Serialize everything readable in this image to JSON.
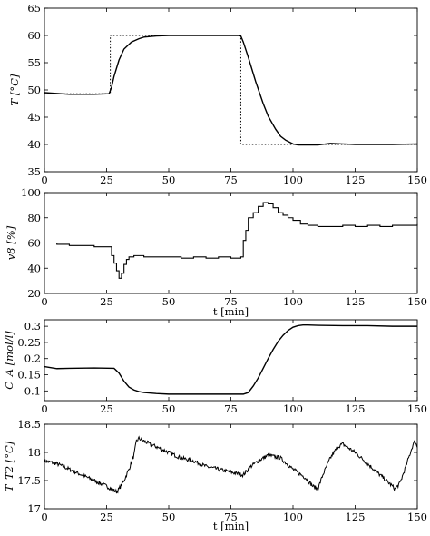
{
  "chart_data": [
    {
      "type": "line",
      "ylabel": "T [°C]",
      "xlabel": "",
      "xlim": [
        0,
        150
      ],
      "ylim": [
        35,
        65
      ],
      "xticks": [
        0,
        25,
        50,
        75,
        100,
        125,
        150
      ],
      "yticks": [
        35,
        40,
        45,
        50,
        55,
        60,
        65
      ],
      "series": [
        {
          "style": "solid",
          "x": [
            0,
            10,
            20,
            26,
            27,
            28,
            30,
            32,
            35,
            38,
            40,
            45,
            50,
            60,
            70,
            75,
            78,
            79,
            80,
            82,
            85,
            88,
            90,
            93,
            95,
            97,
            100,
            102,
            105,
            110,
            115,
            120,
            125,
            130,
            140,
            150
          ],
          "y": [
            49.5,
            49.2,
            49.2,
            49.3,
            50.5,
            52.5,
            55.5,
            57.5,
            58.8,
            59.4,
            59.7,
            59.9,
            60.0,
            60.0,
            60.0,
            60.0,
            60.0,
            59.9,
            58.8,
            56.0,
            51.5,
            47.5,
            45.2,
            42.8,
            41.5,
            40.8,
            40.1,
            39.9,
            39.9,
            39.9,
            40.2,
            40.1,
            40.0,
            40.0,
            40.0,
            40.1
          ]
        },
        {
          "style": "dotted",
          "x": [
            0,
            26.5,
            26.5,
            79,
            79,
            150
          ],
          "y": [
            49.3,
            49.3,
            60,
            60,
            40,
            40
          ]
        }
      ]
    },
    {
      "type": "line",
      "ylabel": "v8 [%]",
      "xlabel": "t [min]",
      "xlim": [
        0,
        150
      ],
      "ylim": [
        20,
        100
      ],
      "xticks": [
        0,
        25,
        50,
        75,
        100,
        125,
        150
      ],
      "yticks": [
        20,
        40,
        60,
        80,
        100
      ],
      "series": [
        {
          "style": "step",
          "x": [
            0,
            5,
            10,
            15,
            20,
            25,
            27,
            28,
            29,
            30,
            31,
            32,
            33,
            34,
            36,
            38,
            40,
            45,
            50,
            55,
            60,
            65,
            70,
            75,
            79,
            80,
            81,
            82,
            84,
            86,
            88,
            90,
            92,
            94,
            96,
            98,
            100,
            103,
            106,
            110,
            115,
            120,
            125,
            130,
            135,
            140,
            145,
            150
          ],
          "y": [
            60,
            59,
            58,
            58,
            57,
            57,
            50,
            44,
            38,
            32,
            36,
            43,
            47,
            49,
            50,
            50,
            49,
            49,
            49,
            48,
            49,
            48,
            49,
            48,
            49,
            62,
            70,
            80,
            84,
            89,
            92,
            91,
            88,
            84,
            82,
            80,
            78,
            75,
            74,
            73,
            73,
            74,
            73,
            74,
            73,
            74,
            74,
            75
          ]
        }
      ]
    },
    {
      "type": "line",
      "ylabel": "C_A [mol/l]",
      "xlabel": "",
      "xlim": [
        0,
        150
      ],
      "ylim": [
        0.07,
        0.32
      ],
      "xticks": [
        0,
        25,
        50,
        75,
        100,
        125,
        150
      ],
      "yticks": [
        0.1,
        0.15,
        0.2,
        0.25,
        0.3
      ],
      "series": [
        {
          "style": "solid",
          "x": [
            0,
            5,
            10,
            20,
            28,
            30,
            32,
            34,
            36,
            38,
            40,
            45,
            50,
            60,
            70,
            80,
            82,
            84,
            86,
            88,
            90,
            92,
            94,
            96,
            98,
            100,
            102,
            104,
            106,
            110,
            120,
            130,
            140,
            150
          ],
          "y": [
            0.175,
            0.169,
            0.17,
            0.171,
            0.17,
            0.155,
            0.13,
            0.112,
            0.103,
            0.098,
            0.095,
            0.092,
            0.09,
            0.09,
            0.09,
            0.09,
            0.095,
            0.115,
            0.14,
            0.17,
            0.2,
            0.228,
            0.253,
            0.272,
            0.287,
            0.297,
            0.302,
            0.304,
            0.304,
            0.303,
            0.302,
            0.302,
            0.3,
            0.3
          ]
        }
      ]
    },
    {
      "type": "line",
      "ylabel": "T_T2 [°C]",
      "xlabel": "t [min]",
      "xlim": [
        0,
        150
      ],
      "ylim": [
        17,
        18.5
      ],
      "xticks": [
        0,
        25,
        50,
        75,
        100,
        125,
        150
      ],
      "yticks": [
        17,
        17.5,
        18,
        18.5
      ],
      "series": [
        {
          "style": "noisy",
          "x": [
            0,
            5,
            10,
            15,
            20,
            25,
            29,
            30,
            32,
            34,
            36,
            37,
            38,
            40,
            45,
            50,
            55,
            60,
            65,
            70,
            75,
            80,
            83,
            86,
            90,
            95,
            100,
            105,
            108,
            110,
            112,
            115,
            118,
            120,
            125,
            130,
            135,
            140,
            141,
            143,
            145,
            148,
            149,
            150
          ],
          "y": [
            17.85,
            17.8,
            17.7,
            17.6,
            17.5,
            17.4,
            17.3,
            17.35,
            17.5,
            17.7,
            17.95,
            18.2,
            18.25,
            18.2,
            18.1,
            18.0,
            17.9,
            17.85,
            17.75,
            17.7,
            17.65,
            17.6,
            17.75,
            17.85,
            17.95,
            17.9,
            17.7,
            17.55,
            17.4,
            17.35,
            17.6,
            17.9,
            18.1,
            18.15,
            18.0,
            17.8,
            17.6,
            17.4,
            17.35,
            17.45,
            17.7,
            18.1,
            18.2,
            18.1
          ]
        }
      ]
    }
  ]
}
